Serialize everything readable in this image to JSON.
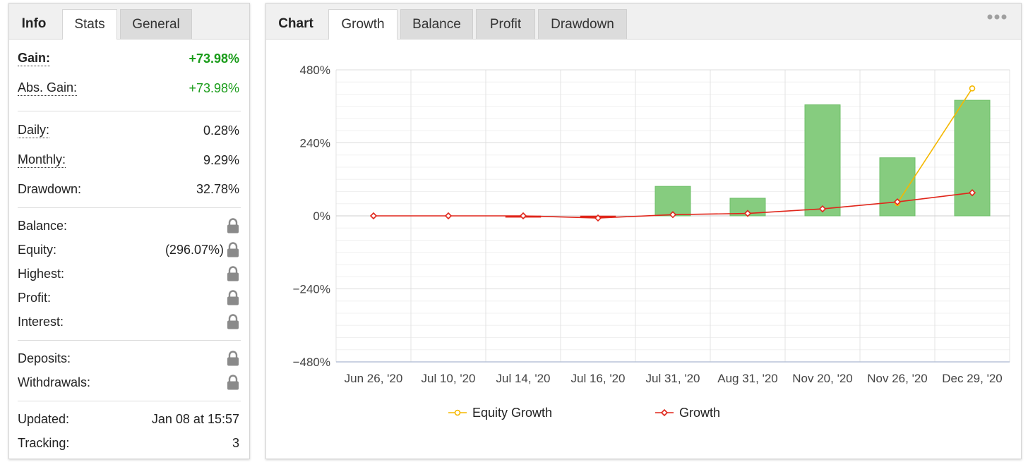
{
  "left_panel": {
    "tabs": [
      {
        "label": "Info",
        "state": "label"
      },
      {
        "label": "Stats",
        "state": "active"
      },
      {
        "label": "General",
        "state": "inactive"
      }
    ],
    "gain": {
      "label": "Gain:",
      "value": "+73.98%"
    },
    "abs_gain": {
      "label": "Abs. Gain:",
      "value": "+73.98%"
    },
    "daily": {
      "label": "Daily:",
      "value": "0.28%"
    },
    "monthly": {
      "label": "Monthly:",
      "value": "9.29%"
    },
    "drawdown": {
      "label": "Drawdown:",
      "value": "32.78%"
    },
    "balance": {
      "label": "Balance:"
    },
    "equity": {
      "label": "Equity:",
      "value": "(296.07%)"
    },
    "highest": {
      "label": "Highest:"
    },
    "profit": {
      "label": "Profit:"
    },
    "interest": {
      "label": "Interest:"
    },
    "deposits": {
      "label": "Deposits:"
    },
    "withdrawals": {
      "label": "Withdrawals:"
    },
    "updated": {
      "label": "Updated:",
      "value": "Jan 08 at 15:57"
    },
    "tracking": {
      "label": "Tracking:",
      "value": "3"
    },
    "lock_icon": "lock-icon",
    "colors": {
      "green": "#1a9c1a",
      "lock": "#8a8a8a"
    }
  },
  "right_panel": {
    "tabs": [
      {
        "label": "Chart",
        "state": "label"
      },
      {
        "label": "Growth",
        "state": "active"
      },
      {
        "label": "Balance",
        "state": "inactive"
      },
      {
        "label": "Profit",
        "state": "inactive"
      },
      {
        "label": "Drawdown",
        "state": "inactive"
      }
    ],
    "menu_icon": "more-dots-icon"
  },
  "chart_data": {
    "type": "bar",
    "categories": [
      "Jun 26, '20",
      "Jul 10, '20",
      "Jul 14, '20",
      "Jul 16, '20",
      "Jul 31, '20",
      "Aug 31, '20",
      "Nov 20, '20",
      "Nov 26, '20",
      "Dec 29, '20"
    ],
    "ylim": [
      -480,
      480
    ],
    "yticks": [
      480,
      240,
      0,
      -240,
      -480
    ],
    "ytick_labels": [
      "480%",
      "240%",
      "0%",
      "−240%",
      "−480%"
    ],
    "grid": true,
    "legend_position": "bottom",
    "series": [
      {
        "name": "",
        "type": "bar",
        "color": "#86cc7f",
        "values": [
          0,
          0,
          -5,
          -5,
          97,
          58,
          365,
          191,
          380
        ]
      },
      {
        "name": "Equity Growth",
        "type": "line",
        "color": "#f5b800",
        "values": [
          null,
          null,
          null,
          null,
          null,
          null,
          null,
          42,
          419
        ]
      },
      {
        "name": "Growth",
        "type": "line",
        "color": "#e0261b",
        "values": [
          0,
          0,
          0,
          -7,
          4,
          8,
          23,
          46,
          76
        ]
      }
    ]
  }
}
